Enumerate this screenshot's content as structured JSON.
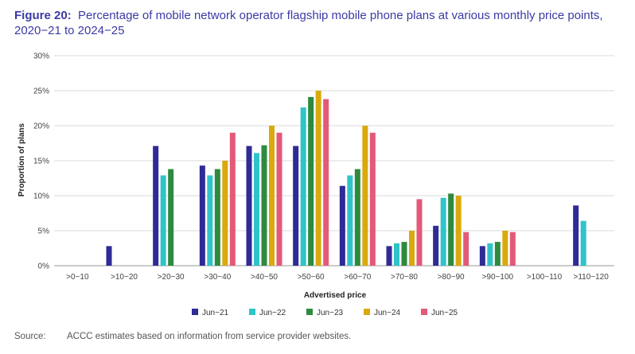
{
  "figure": {
    "label": "Figure 20:",
    "title": "Percentage of mobile network operator flagship mobile phone plans at various monthly price points, 2020−21 to 2024−25"
  },
  "source": {
    "label": "Source:",
    "text": "ACCC estimates based on information from service provider websites."
  },
  "chart_data": {
    "type": "bar",
    "categories": [
      ">0−10",
      ">10−20",
      ">20−30",
      ">30−40",
      ">40−50",
      ">50−60",
      ">60−70",
      ">70−80",
      ">80−90",
      ">90−100",
      ">100−110",
      ">110−120"
    ],
    "series": [
      {
        "name": "Jun−21",
        "color": "#2e2a96",
        "values": [
          0,
          2.8,
          17.1,
          14.3,
          17.1,
          17.1,
          11.4,
          2.8,
          5.7,
          2.8,
          0,
          8.6
        ]
      },
      {
        "name": "Jun−22",
        "color": "#2ec4c8",
        "values": [
          0,
          0,
          12.9,
          12.9,
          16.1,
          22.6,
          12.9,
          3.2,
          9.7,
          3.2,
          0,
          6.4
        ]
      },
      {
        "name": "Jun−23",
        "color": "#2e8a3e",
        "values": [
          0,
          0,
          13.8,
          13.8,
          17.2,
          24.1,
          13.8,
          3.4,
          10.3,
          3.4,
          0,
          0
        ]
      },
      {
        "name": "Jun−24",
        "color": "#d9a90e",
        "values": [
          0,
          0,
          0,
          15,
          20,
          25,
          20,
          5,
          10,
          5,
          0,
          0
        ]
      },
      {
        "name": "Jun−25",
        "color": "#e35a78",
        "values": [
          0,
          0,
          0,
          19,
          19,
          23.8,
          19,
          9.5,
          4.8,
          4.8,
          0,
          0
        ]
      }
    ],
    "xlabel": "Advertised price",
    "ylabel": "Proportion of plans",
    "ylim": [
      0,
      30
    ],
    "yticks": [
      "0%",
      "5%",
      "10%",
      "15%",
      "20%",
      "25%",
      "30%"
    ],
    "grid": true,
    "legend_position": "bottom"
  }
}
